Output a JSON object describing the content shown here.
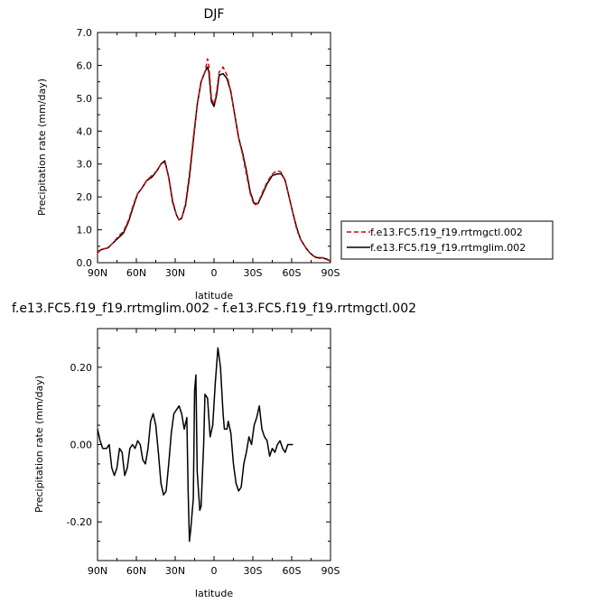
{
  "chart_data": [
    {
      "type": "line",
      "title": "DJF",
      "xlabel": "latitude",
      "ylabel": "Precipitation rate (mm/day)",
      "xlim": [
        90,
        -90
      ],
      "ylim": [
        0,
        7
      ],
      "x_ticks": [
        90,
        60,
        30,
        0,
        -30,
        -60,
        -90
      ],
      "x_tick_labels": [
        "90N",
        "60N",
        "30N",
        "0",
        "30S",
        "60S",
        "90S"
      ],
      "y_ticks": [
        0,
        1,
        2,
        3,
        4,
        5,
        6,
        7
      ],
      "y_tick_labels": [
        "0.0",
        "1.0",
        "2.0",
        "3.0",
        "4.0",
        "5.0",
        "6.0",
        "7.0"
      ],
      "legend_position": "right",
      "series": [
        {
          "name": "f.e13.FC5.f19_f19.rrtmgctl.002",
          "color": "#dd0000",
          "dash": "dashed",
          "points": [
            [
              90,
              0.3
            ],
            [
              87,
              0.4
            ],
            [
              82,
              0.45
            ],
            [
              78,
              0.6
            ],
            [
              74,
              0.8
            ],
            [
              70,
              0.95
            ],
            [
              66,
              1.3
            ],
            [
              62,
              1.8
            ],
            [
              59,
              2.1
            ],
            [
              56,
              2.25
            ],
            [
              52,
              2.5
            ],
            [
              48,
              2.65
            ],
            [
              44,
              2.8
            ],
            [
              41,
              3.0
            ],
            [
              38,
              3.05
            ],
            [
              35,
              2.6
            ],
            [
              32,
              1.9
            ],
            [
              29,
              1.45
            ],
            [
              27,
              1.3
            ],
            [
              25,
              1.35
            ],
            [
              22,
              1.8
            ],
            [
              19,
              2.7
            ],
            [
              16,
              3.8
            ],
            [
              13,
              4.8
            ],
            [
              10,
              5.5
            ],
            [
              7,
              5.8
            ],
            [
              5,
              6.2
            ],
            [
              4,
              6.0
            ],
            [
              2,
              5.0
            ],
            [
              0,
              4.8
            ],
            [
              -2,
              5.2
            ],
            [
              -4,
              5.8
            ],
            [
              -7,
              5.95
            ],
            [
              -10,
              5.7
            ],
            [
              -13,
              5.2
            ],
            [
              -16,
              4.5
            ],
            [
              -19,
              3.8
            ],
            [
              -22,
              3.3
            ],
            [
              -25,
              2.7
            ],
            [
              -28,
              2.1
            ],
            [
              -31,
              1.75
            ],
            [
              -34,
              1.8
            ],
            [
              -37,
              2.1
            ],
            [
              -41,
              2.45
            ],
            [
              -45,
              2.7
            ],
            [
              -49,
              2.8
            ],
            [
              -52,
              2.75
            ],
            [
              -55,
              2.5
            ],
            [
              -58,
              2.0
            ],
            [
              -61,
              1.5
            ],
            [
              -64,
              1.0
            ],
            [
              -67,
              0.7
            ],
            [
              -71,
              0.45
            ],
            [
              -74,
              0.3
            ],
            [
              -77,
              0.2
            ],
            [
              -80,
              0.12
            ],
            [
              -84,
              0.15
            ],
            [
              -87,
              0.12
            ],
            [
              -90,
              0.05
            ]
          ]
        },
        {
          "name": "f.e13.FC5.f19_f19.rrtmglim.002",
          "color": "#000000",
          "dash": "solid",
          "points": [
            [
              90,
              0.33
            ],
            [
              87,
              0.4
            ],
            [
              82,
              0.45
            ],
            [
              78,
              0.6
            ],
            [
              74,
              0.75
            ],
            [
              70,
              0.9
            ],
            [
              66,
              1.25
            ],
            [
              62,
              1.75
            ],
            [
              59,
              2.1
            ],
            [
              56,
              2.25
            ],
            [
              52,
              2.5
            ],
            [
              48,
              2.6
            ],
            [
              44,
              2.8
            ],
            [
              41,
              3.0
            ],
            [
              38,
              3.1
            ],
            [
              35,
              2.6
            ],
            [
              32,
              1.85
            ],
            [
              29,
              1.45
            ],
            [
              27,
              1.3
            ],
            [
              25,
              1.35
            ],
            [
              22,
              1.75
            ],
            [
              19,
              2.6
            ],
            [
              16,
              3.7
            ],
            [
              13,
              4.8
            ],
            [
              10,
              5.5
            ],
            [
              7,
              5.8
            ],
            [
              5,
              5.95
            ],
            [
              4,
              5.8
            ],
            [
              2,
              4.9
            ],
            [
              0,
              4.75
            ],
            [
              -2,
              5.1
            ],
            [
              -4,
              5.7
            ],
            [
              -7,
              5.75
            ],
            [
              -10,
              5.6
            ],
            [
              -13,
              5.2
            ],
            [
              -16,
              4.5
            ],
            [
              -19,
              3.8
            ],
            [
              -22,
              3.35
            ],
            [
              -25,
              2.8
            ],
            [
              -28,
              2.15
            ],
            [
              -31,
              1.8
            ],
            [
              -34,
              1.8
            ],
            [
              -37,
              2.05
            ],
            [
              -41,
              2.4
            ],
            [
              -45,
              2.65
            ],
            [
              -49,
              2.7
            ],
            [
              -52,
              2.7
            ],
            [
              -55,
              2.5
            ],
            [
              -58,
              2.0
            ],
            [
              -61,
              1.5
            ],
            [
              -64,
              1.05
            ],
            [
              -67,
              0.7
            ],
            [
              -71,
              0.45
            ],
            [
              -74,
              0.3
            ],
            [
              -77,
              0.2
            ],
            [
              -80,
              0.15
            ],
            [
              -84,
              0.15
            ],
            [
              -87,
              0.1
            ],
            [
              -90,
              0.05
            ]
          ]
        }
      ]
    },
    {
      "type": "line",
      "title": "f.e13.FC5.f19_f19.rrtmglim.002 - f.e13.FC5.f19_f19.rrtmgctl.002",
      "xlabel": "latitude",
      "ylabel": "Precipitation rate (mm/day)",
      "xlim": [
        90,
        -90
      ],
      "ylim": [
        -0.3,
        0.3
      ],
      "x_ticks": [
        90,
        60,
        30,
        0,
        -30,
        -60,
        -90
      ],
      "x_tick_labels": [
        "90N",
        "60N",
        "30N",
        "0",
        "30S",
        "60S",
        "90S"
      ],
      "y_ticks": [
        -0.2,
        0,
        0.2
      ],
      "y_tick_labels": [
        "-0.20",
        "0.00",
        "0.20"
      ],
      "series": [
        {
          "color": "#000000",
          "dash": "solid",
          "points": [
            [
              90,
              0.04
            ],
            [
              88,
              0.01
            ],
            [
              86,
              -0.01
            ],
            [
              83,
              -0.01
            ],
            [
              81,
              0.0
            ],
            [
              79,
              -0.06
            ],
            [
              77,
              -0.08
            ],
            [
              75,
              -0.06
            ],
            [
              73,
              -0.01
            ],
            [
              71,
              -0.02
            ],
            [
              69,
              -0.08
            ],
            [
              67,
              -0.06
            ],
            [
              65,
              -0.01
            ],
            [
              63,
              0.0
            ],
            [
              61,
              -0.01
            ],
            [
              59,
              0.01
            ],
            [
              57,
              0.0
            ],
            [
              55,
              -0.04
            ],
            [
              53,
              -0.05
            ],
            [
              51,
              -0.01
            ],
            [
              49,
              0.06
            ],
            [
              47,
              0.08
            ],
            [
              45,
              0.05
            ],
            [
              43,
              -0.02
            ],
            [
              41,
              -0.1
            ],
            [
              39,
              -0.13
            ],
            [
              37,
              -0.12
            ],
            [
              35,
              -0.05
            ],
            [
              33,
              0.03
            ],
            [
              31,
              0.08
            ],
            [
              29,
              0.09
            ],
            [
              27,
              0.1
            ],
            [
              25,
              0.08
            ],
            [
              23,
              0.04
            ],
            [
              21,
              0.07
            ],
            [
              20,
              -0.12
            ],
            [
              19,
              -0.25
            ],
            [
              18,
              -0.22
            ],
            [
              16,
              -0.14
            ],
            [
              15,
              0.14
            ],
            [
              14,
              0.18
            ],
            [
              13,
              -0.07
            ],
            [
              11,
              -0.17
            ],
            [
              10,
              -0.16
            ],
            [
              8,
              0.0
            ],
            [
              7,
              0.13
            ],
            [
              5,
              0.12
            ],
            [
              3,
              0.02
            ],
            [
              1,
              0.05
            ],
            [
              -1,
              0.16
            ],
            [
              -3,
              0.25
            ],
            [
              -5,
              0.2
            ],
            [
              -7,
              0.08
            ],
            [
              -8,
              0.04
            ],
            [
              -10,
              0.04
            ],
            [
              -11,
              0.06
            ],
            [
              -13,
              0.03
            ],
            [
              -15,
              -0.05
            ],
            [
              -17,
              -0.1
            ],
            [
              -19,
              -0.12
            ],
            [
              -21,
              -0.11
            ],
            [
              -23,
              -0.05
            ],
            [
              -25,
              -0.02
            ],
            [
              -27,
              0.02
            ],
            [
              -29,
              0.0
            ],
            [
              -31,
              0.05
            ],
            [
              -33,
              0.07
            ],
            [
              -35,
              0.1
            ],
            [
              -37,
              0.04
            ],
            [
              -39,
              0.02
            ],
            [
              -41,
              0.01
            ],
            [
              -43,
              -0.03
            ],
            [
              -45,
              -0.01
            ],
            [
              -47,
              -0.02
            ],
            [
              -49,
              0.0
            ],
            [
              -51,
              0.01
            ],
            [
              -53,
              -0.01
            ],
            [
              -55,
              -0.02
            ],
            [
              -57,
              0.0
            ],
            [
              -59,
              0.0
            ],
            [
              -61,
              0.0
            ]
          ]
        }
      ]
    }
  ]
}
